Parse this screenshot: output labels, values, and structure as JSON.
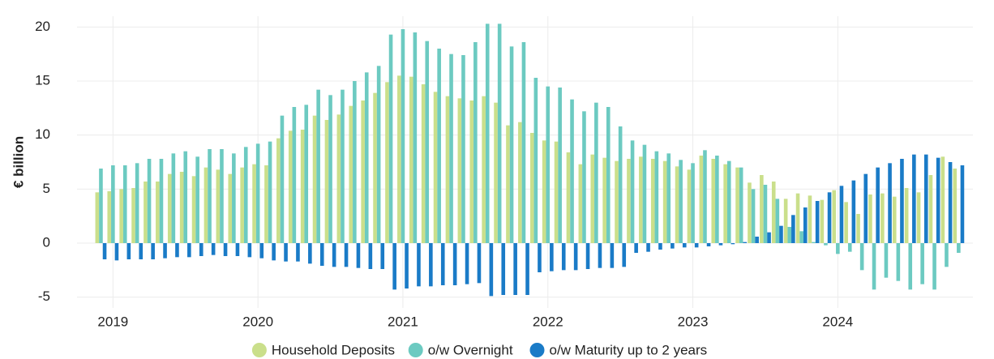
{
  "chart_data": {
    "type": "bar",
    "y_label": "€ billion",
    "categories": [
      null,
      "2019",
      null,
      null,
      null,
      null,
      null,
      null,
      null,
      null,
      null,
      null,
      null,
      "2020",
      null,
      null,
      null,
      null,
      null,
      null,
      null,
      null,
      null,
      null,
      null,
      "2021",
      null,
      null,
      null,
      null,
      null,
      null,
      null,
      null,
      null,
      null,
      null,
      "2022",
      null,
      null,
      null,
      null,
      null,
      null,
      null,
      null,
      null,
      null,
      null,
      "2023",
      null,
      null,
      null,
      null,
      null,
      null,
      null,
      null,
      null,
      null,
      null,
      "2024",
      null,
      null,
      null,
      null,
      null,
      null,
      null,
      null,
      null,
      null
    ],
    "series": [
      {
        "name": "Household Deposits",
        "color": "#cadf8b",
        "values": [
          4.7,
          4.8,
          5.0,
          5.1,
          5.7,
          5.7,
          6.4,
          6.6,
          6.2,
          7.0,
          6.8,
          6.4,
          7.0,
          7.3,
          7.2,
          9.7,
          10.4,
          10.5,
          11.8,
          11.4,
          11.9,
          12.7,
          13.2,
          13.9,
          14.9,
          15.5,
          15.4,
          14.7,
          14.0,
          13.6,
          13.4,
          13.2,
          13.6,
          13.0,
          10.9,
          11.2,
          10.2,
          9.5,
          9.4,
          8.4,
          7.3,
          8.2,
          7.9,
          7.6,
          7.8,
          8.0,
          7.8,
          7.6,
          7.1,
          6.8,
          8.1,
          7.8,
          7.3,
          7.0,
          5.6,
          6.3,
          5.7,
          4.1,
          4.6,
          4.4,
          4.0,
          4.9,
          3.8,
          2.7,
          4.5,
          4.6,
          4.3,
          5.1,
          4.7,
          6.3,
          8.0,
          6.9
        ]
      },
      {
        "name": "o/w Overnight",
        "color": "#6ccac1",
        "values": [
          6.9,
          7.2,
          7.2,
          7.4,
          7.8,
          7.8,
          8.3,
          8.5,
          8.0,
          8.7,
          8.7,
          8.3,
          8.9,
          9.2,
          9.4,
          11.8,
          12.6,
          12.8,
          14.2,
          13.7,
          14.2,
          15.0,
          15.8,
          16.4,
          19.3,
          19.8,
          19.5,
          18.7,
          18.0,
          17.5,
          17.4,
          18.6,
          20.3,
          20.3,
          18.2,
          18.6,
          15.3,
          14.5,
          14.4,
          13.3,
          12.2,
          13.0,
          12.6,
          10.8,
          9.5,
          9.1,
          8.5,
          8.3,
          7.7,
          7.4,
          8.6,
          8.1,
          7.6,
          7.0,
          5.0,
          5.4,
          4.1,
          1.5,
          1.1,
          0.1,
          -0.2,
          -1.0,
          -0.8,
          -2.5,
          -4.3,
          -3.2,
          -3.5,
          -4.3,
          -3.8,
          -4.3,
          -2.2,
          -0.9
        ]
      },
      {
        "name": "o/w Maturity up to 2 years",
        "color": "#1a7bc7",
        "values": [
          -1.5,
          -1.6,
          -1.5,
          -1.5,
          -1.5,
          -1.4,
          -1.3,
          -1.3,
          -1.2,
          -1.1,
          -1.2,
          -1.2,
          -1.3,
          -1.4,
          -1.6,
          -1.7,
          -1.7,
          -1.9,
          -2.1,
          -2.2,
          -2.2,
          -2.3,
          -2.4,
          -2.4,
          -4.3,
          -4.2,
          -4.0,
          -4.0,
          -3.9,
          -3.9,
          -3.8,
          -3.7,
          -4.9,
          -4.8,
          -4.8,
          -4.8,
          -2.7,
          -2.6,
          -2.5,
          -2.5,
          -2.4,
          -2.3,
          -2.3,
          -2.2,
          -0.9,
          -0.8,
          -0.6,
          -0.5,
          -0.4,
          -0.4,
          -0.3,
          -0.2,
          -0.1,
          0.1,
          0.6,
          1.0,
          1.6,
          2.6,
          3.3,
          3.9,
          4.7,
          5.3,
          5.8,
          6.4,
          7.0,
          7.4,
          7.8,
          8.2,
          8.2,
          7.9,
          7.5,
          7.2
        ]
      }
    ],
    "ylim": [
      -6,
      21
    ],
    "yticks": [
      -5,
      0,
      5,
      10,
      15,
      20
    ],
    "grid": true,
    "legend": "bottom"
  }
}
